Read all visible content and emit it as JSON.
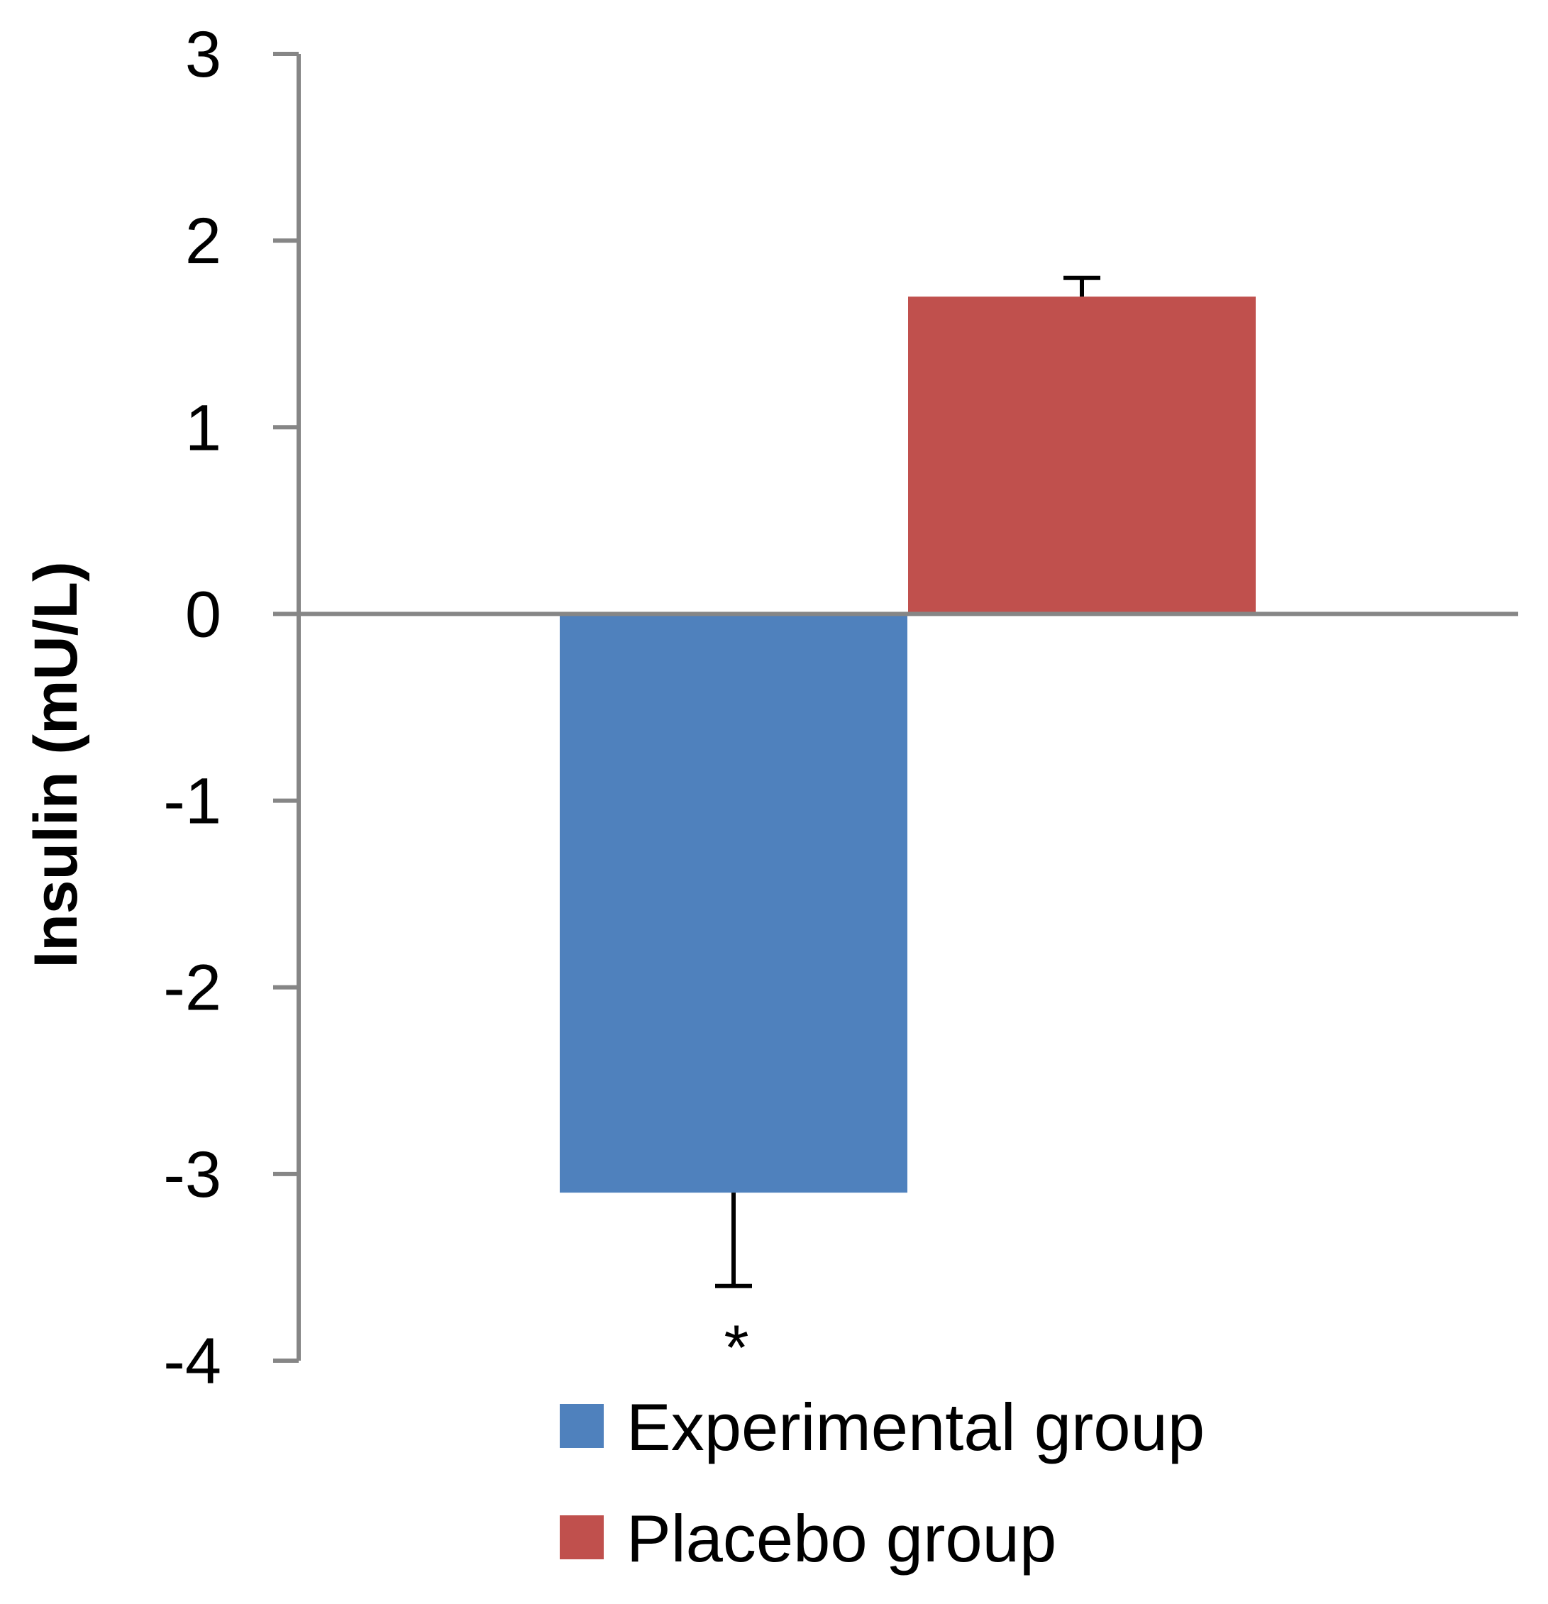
{
  "chart_data": {
    "type": "bar",
    "title": "",
    "xlabel": "",
    "ylabel": "Insulin (mU/L)",
    "ylim": [
      -4,
      3
    ],
    "yticks": [
      3,
      2,
      1,
      0,
      -1,
      -2,
      -3,
      -4
    ],
    "grid": false,
    "legend_position": "bottom",
    "series": [
      {
        "name": "Experimental group",
        "value": -3.1,
        "error": 0.5,
        "color": "#4F81BD",
        "annotation": "*"
      },
      {
        "name": "Placebo group",
        "value": 1.7,
        "error": 0.1,
        "color": "#C0504D",
        "annotation": ""
      }
    ],
    "axis_color": "#868686",
    "error_bar_color": "#000000"
  }
}
